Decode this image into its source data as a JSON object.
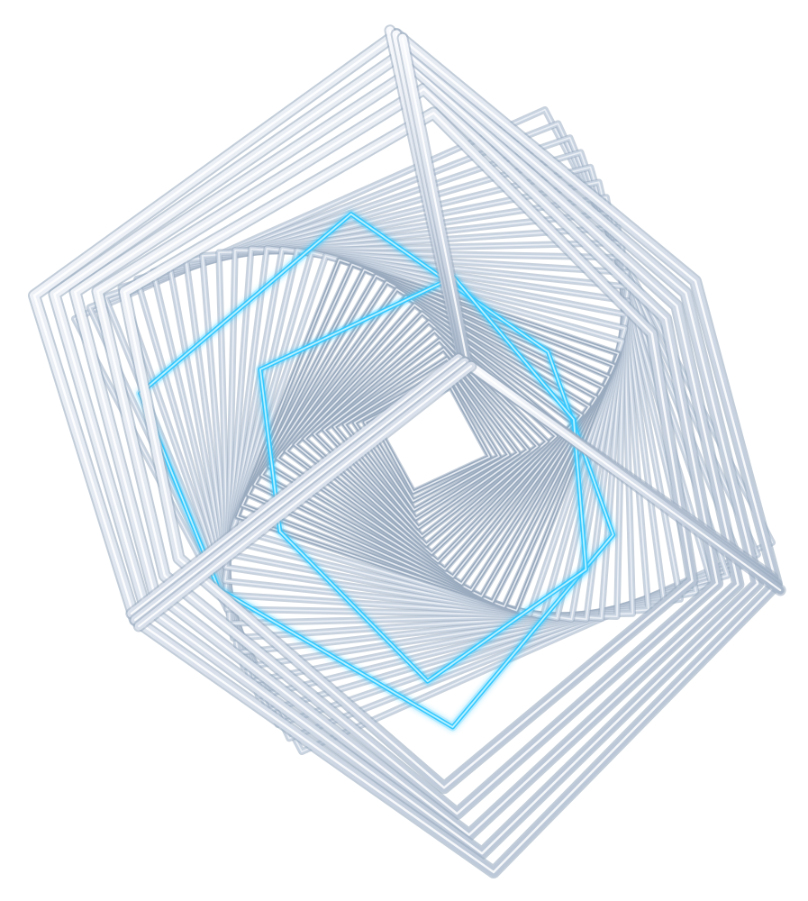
{
  "image": {
    "subject": "",
    "colors": {
      "background": "#ffffff",
      "frame_light": "#eef2f7",
      "frame_mid": "#c9d4e2",
      "frame_shadow": "#9aabbf",
      "accent_glow": "#34c8ff",
      "accent_core": "#b9f1ff"
    }
  }
}
